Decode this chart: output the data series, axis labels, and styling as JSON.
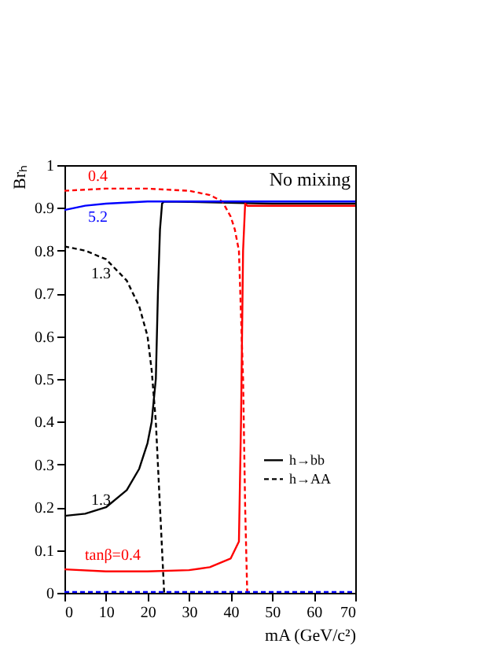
{
  "chart_data": {
    "type": "line",
    "xlabel": "mA (GeV/c²)",
    "ylabel": "Brₕ",
    "xlim": [
      0,
      70
    ],
    "xticks": [
      0,
      10,
      20,
      30,
      40,
      50,
      60,
      70
    ],
    "ylim": [
      0,
      1
    ],
    "yticks": [
      0,
      0.1,
      0.2,
      0.3,
      0.4,
      0.5,
      0.6,
      0.7,
      0.8,
      0.9,
      1
    ],
    "legend": "right",
    "series": [
      {
        "name": "h→bb",
        "color": "#000000",
        "line_style": "solid",
        "x": [
          0,
          5,
          10,
          15,
          18,
          20,
          21,
          22,
          22.5,
          23,
          23.5,
          24,
          30,
          50,
          70
        ],
        "values": [
          0.18,
          0.185,
          0.2,
          0.24,
          0.29,
          0.35,
          0.4,
          0.5,
          0.7,
          0.85,
          0.91,
          0.915,
          null,
          0.91,
          0.91
        ]
      },
      {
        "name": "h→AA",
        "color": "#000000",
        "line_style": "dashed",
        "x": [
          0,
          5,
          10,
          15,
          18,
          20,
          21,
          22,
          22.5,
          23,
          23.5,
          24
        ],
        "values": [
          0.81,
          0.8,
          0.78,
          0.73,
          0.67,
          0.6,
          0.52,
          0.4,
          0.3,
          0.2,
          0.1,
          0.0
        ]
      },
      {
        "color": "#ff0000",
        "line_style": "solid",
        "x": [
          0,
          10,
          20,
          30,
          35,
          40,
          42,
          42.5,
          43,
          43.5,
          44,
          70
        ],
        "values": [
          0.055,
          0.05,
          0.05,
          0.053,
          0.06,
          0.08,
          0.12,
          0.4,
          0.8,
          0.91,
          0.905,
          0.905
        ]
      },
      {
        "color": "#ff0000",
        "line_style": "dashed",
        "x": [
          0,
          10,
          20,
          30,
          35,
          38,
          40,
          41,
          42,
          43,
          43.5,
          44
        ],
        "values": [
          0.94,
          0.945,
          0.945,
          0.94,
          0.93,
          0.915,
          0.88,
          0.85,
          0.8,
          0.5,
          0.2,
          0.0
        ]
      },
      {
        "color": "#0000ff",
        "line_style": "solid",
        "x": [
          0,
          5,
          10,
          20,
          70
        ],
        "values": [
          0.895,
          0.905,
          0.91,
          0.915,
          0.915
        ]
      },
      {
        "color": "#0000ff",
        "line_style": "dashed",
        "x": [
          0,
          70
        ],
        "values": [
          0.002,
          0.002
        ]
      }
    ],
    "annotations": [
      "0.4",
      "5.2",
      "1.3",
      "1.3",
      "tanβ=0.4",
      "No mixing"
    ]
  }
}
